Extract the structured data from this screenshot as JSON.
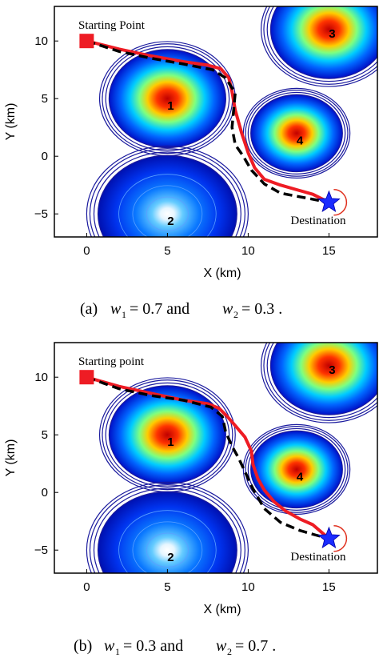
{
  "chart_data": [
    {
      "type": "line",
      "xlabel": "X (km)",
      "ylabel": "Y (km)",
      "xlim": [
        -2,
        18
      ],
      "ylim": [
        -7,
        13
      ],
      "xticks": [
        0,
        5,
        10,
        15
      ],
      "yticks": [
        10,
        5,
        0,
        -5
      ],
      "grid": false,
      "annotations": {
        "start_label": "Starting Point",
        "dest_label": "Destination"
      },
      "start": [
        0,
        10
      ],
      "destination": [
        15,
        -4
      ],
      "threats": [
        {
          "label": "1",
          "center": [
            5,
            5
          ],
          "radius": 4.2
        },
        {
          "label": "2",
          "center": [
            5,
            -5
          ],
          "radius": 5.0
        },
        {
          "label": "3",
          "center": [
            15,
            11
          ],
          "radius": 4.2
        },
        {
          "label": "4",
          "center": [
            13,
            2
          ],
          "radius": 3.3
        }
      ],
      "series": [
        {
          "style": "solid",
          "color": "#ee1c24",
          "x": [
            0,
            2,
            4,
            6,
            7.5,
            8.3,
            8.8,
            9.0,
            9.2,
            9.6,
            10.0,
            10.4,
            11.0,
            12.0,
            13.0,
            14.0,
            15.0
          ],
          "y": [
            10,
            9.3,
            8.7,
            8.2,
            7.9,
            7.6,
            6.8,
            5.6,
            4.0,
            2.0,
            0.3,
            -1.0,
            -2.0,
            -2.5,
            -2.9,
            -3.3,
            -4.0
          ]
        },
        {
          "style": "dashed",
          "color": "#000000",
          "x": [
            0,
            2,
            4,
            6,
            7.8,
            8.6,
            9.2,
            9.1,
            9.0,
            9.2,
            9.7,
            10.2,
            11.0,
            12.0,
            13.5,
            15.0
          ],
          "y": [
            10,
            9.1,
            8.5,
            8.0,
            7.5,
            6.8,
            5.5,
            4.0,
            2.5,
            1.0,
            0.0,
            -1.2,
            -2.4,
            -3.2,
            -3.6,
            -4.0
          ]
        }
      ],
      "caption": {
        "prefix": "(a)",
        "w1": "0.7",
        "w2": "0.3"
      }
    },
    {
      "type": "line",
      "xlabel": "X (km)",
      "ylabel": "Y (km)",
      "xlim": [
        -2,
        18
      ],
      "ylim": [
        -7,
        13
      ],
      "xticks": [
        0,
        5,
        10,
        15
      ],
      "yticks": [
        10,
        5,
        0,
        -5
      ],
      "grid": false,
      "annotations": {
        "start_label": "Starting point",
        "dest_label": "Destination"
      },
      "start": [
        0,
        10
      ],
      "destination": [
        15,
        -4
      ],
      "threats": [
        {
          "label": "1",
          "center": [
            5,
            5
          ],
          "radius": 4.2
        },
        {
          "label": "2",
          "center": [
            5,
            -5
          ],
          "radius": 5.0
        },
        {
          "label": "3",
          "center": [
            15,
            11
          ],
          "radius": 4.2
        },
        {
          "label": "4",
          "center": [
            13,
            2
          ],
          "radius": 3.3
        }
      ],
      "series": [
        {
          "style": "solid",
          "color": "#ee1c24",
          "x": [
            0,
            2,
            4,
            6,
            7.5,
            8.2,
            8.7,
            9.2,
            9.8,
            10.2,
            10.3,
            10.6,
            11.0,
            11.6,
            12.3,
            13.2,
            14.0,
            15.0
          ],
          "y": [
            10,
            9.2,
            8.6,
            8.0,
            7.7,
            7.3,
            6.6,
            5.8,
            4.8,
            3.6,
            2.4,
            1.2,
            0.2,
            -0.8,
            -1.6,
            -2.3,
            -2.8,
            -4.0
          ]
        },
        {
          "style": "dashed",
          "color": "#000000",
          "x": [
            0,
            2,
            4,
            6,
            7.7,
            8.4,
            8.6,
            9.0,
            9.4,
            9.8,
            10.3,
            11.0,
            12.0,
            13.2,
            14.2,
            15.0
          ],
          "y": [
            10,
            9.0,
            8.4,
            8.0,
            7.4,
            6.6,
            5.3,
            4.0,
            3.0,
            1.8,
            0.3,
            -1.4,
            -2.6,
            -3.3,
            -3.7,
            -4.0
          ]
        }
      ],
      "caption": {
        "prefix": "(b)",
        "w1": "0.3",
        "w2": "0.7"
      }
    }
  ]
}
